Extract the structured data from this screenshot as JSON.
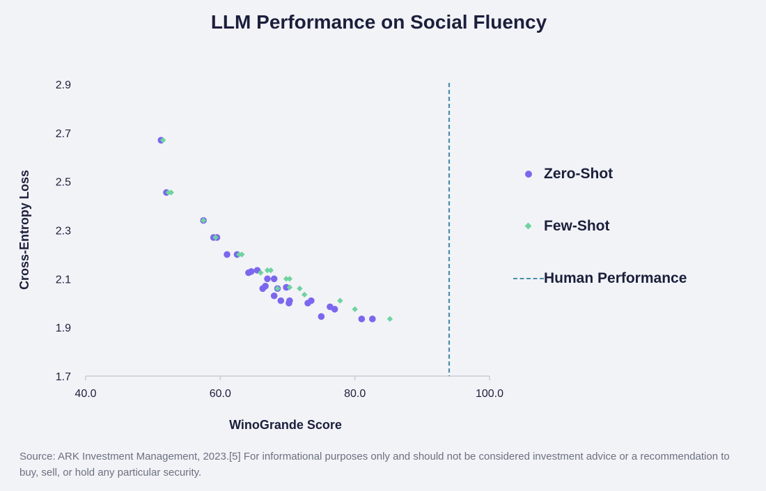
{
  "chart_data": {
    "type": "scatter",
    "title": "LLM Performance on Social Fluency",
    "xlabel": "WinoGrande Score",
    "ylabel": "Cross-Entropy Loss",
    "xlim": [
      40,
      100
    ],
    "ylim": [
      1.7,
      2.9
    ],
    "x_ticks": [
      "40.0",
      "60.0",
      "80.0",
      "100.0"
    ],
    "y_ticks": [
      "1.7",
      "1.9",
      "2.1",
      "2.3",
      "2.5",
      "2.7",
      "2.9"
    ],
    "grid": false,
    "legend_position": "right",
    "series": [
      {
        "name": "Zero-Shot",
        "marker": "circle",
        "color": "#7b67ee",
        "points": [
          [
            51.2,
            2.67
          ],
          [
            52.0,
            2.455
          ],
          [
            57.5,
            2.34
          ],
          [
            59.0,
            2.27
          ],
          [
            59.5,
            2.27
          ],
          [
            61.0,
            2.2
          ],
          [
            62.5,
            2.2
          ],
          [
            64.2,
            2.125
          ],
          [
            64.6,
            2.13
          ],
          [
            65.5,
            2.135
          ],
          [
            66.3,
            2.06
          ],
          [
            66.7,
            2.07
          ],
          [
            67.0,
            2.1
          ],
          [
            68.0,
            2.1
          ],
          [
            68.0,
            2.03
          ],
          [
            68.5,
            2.06
          ],
          [
            69.0,
            2.01
          ],
          [
            69.8,
            2.065
          ],
          [
            70.2,
            2.0
          ],
          [
            70.3,
            2.01
          ],
          [
            73.0,
            2.0
          ],
          [
            73.5,
            2.01
          ],
          [
            75.0,
            1.945
          ],
          [
            76.3,
            1.985
          ],
          [
            77.0,
            1.975
          ],
          [
            81.0,
            1.935
          ],
          [
            82.6,
            1.935
          ]
        ]
      },
      {
        "name": "Few-Shot",
        "marker": "diamond",
        "color": "#6fd3a0",
        "points": [
          [
            51.5,
            2.67
          ],
          [
            52.3,
            2.455
          ],
          [
            52.7,
            2.455
          ],
          [
            57.5,
            2.34
          ],
          [
            59.3,
            2.27
          ],
          [
            62.8,
            2.2
          ],
          [
            63.2,
            2.2
          ],
          [
            66.0,
            2.125
          ],
          [
            67.0,
            2.135
          ],
          [
            67.5,
            2.135
          ],
          [
            68.5,
            2.06
          ],
          [
            69.8,
            2.1
          ],
          [
            70.3,
            2.1
          ],
          [
            70.3,
            2.065
          ],
          [
            71.8,
            2.06
          ],
          [
            72.5,
            2.035
          ],
          [
            77.8,
            2.01
          ],
          [
            80.0,
            1.975
          ],
          [
            85.2,
            1.935
          ]
        ]
      }
    ],
    "reference_line": {
      "name": "Human Performance",
      "orientation": "vertical",
      "x": 94.0,
      "style": "dashed",
      "color": "#4a8fa8"
    }
  },
  "legend": {
    "items": [
      {
        "label": "Zero-Shot",
        "swatch": "circle"
      },
      {
        "label": "Few-Shot",
        "swatch": "diamond"
      },
      {
        "label": "Human Performance",
        "swatch": "dashed-line"
      }
    ]
  },
  "source": "Source: ARK Investment Management, 2023.[5] For informational purposes only and should not be considered investment advice or a recommendation to buy, sell, or hold any particular security."
}
